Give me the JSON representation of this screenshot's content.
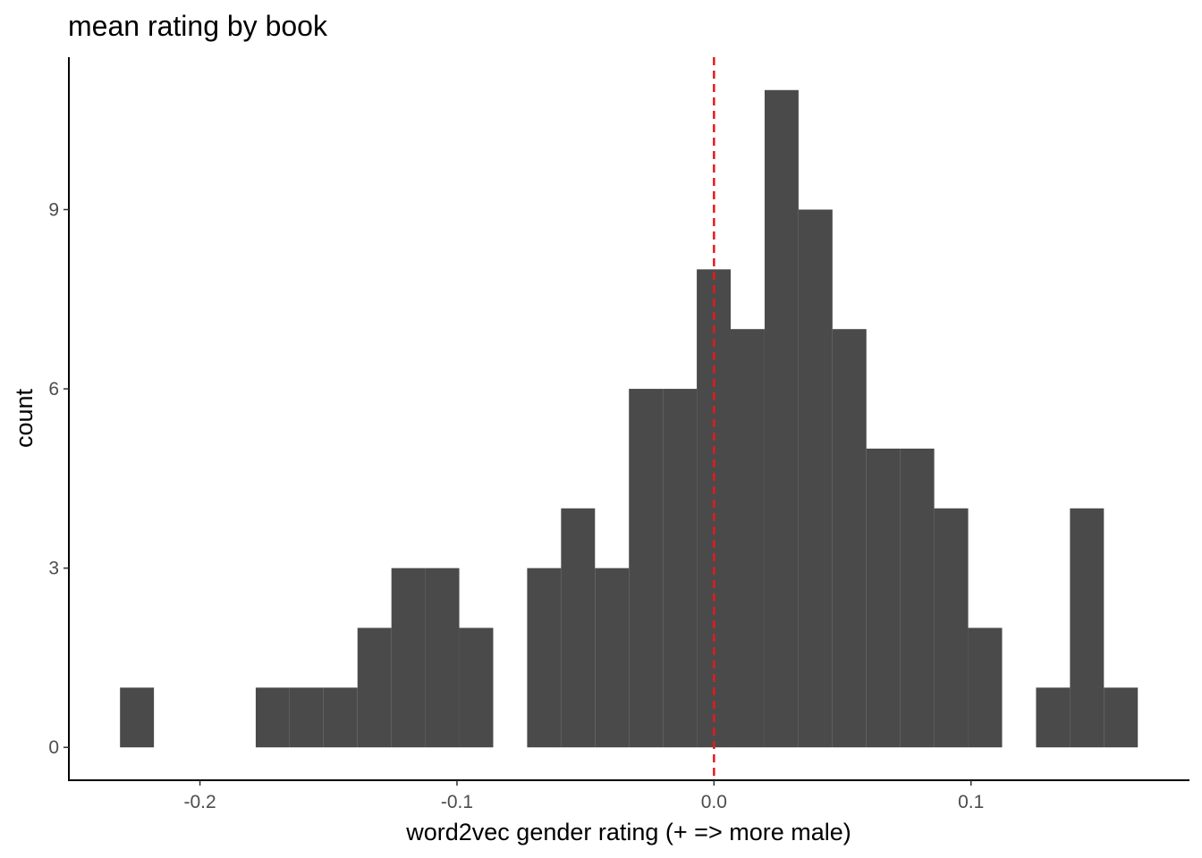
{
  "chart_data": {
    "type": "histogram",
    "title": "mean rating by book",
    "xlabel": "word2vec gender rating (+ => more male)",
    "ylabel": "count",
    "xlim": [
      -0.251,
      0.185
    ],
    "ylim": [
      -0.55,
      11.55
    ],
    "x_ticks": [
      -0.2,
      -0.1,
      0.0,
      0.1
    ],
    "x_tick_labels": [
      "-0.2",
      "-0.1",
      "0.0",
      "0.1"
    ],
    "y_ticks": [
      0,
      3,
      6,
      9
    ],
    "y_tick_labels": [
      "0",
      "3",
      "6",
      "9"
    ],
    "bin_width": 0.0132,
    "bars": [
      {
        "x0": -0.2311,
        "x1": -0.2179,
        "count": 1
      },
      {
        "x0": -0.2179,
        "x1": -0.2047,
        "count": 0
      },
      {
        "x0": -0.2047,
        "x1": -0.1915,
        "count": 0
      },
      {
        "x0": -0.1915,
        "x1": -0.1783,
        "count": 0
      },
      {
        "x0": -0.1783,
        "x1": -0.1651,
        "count": 1
      },
      {
        "x0": -0.1651,
        "x1": -0.1519,
        "count": 1
      },
      {
        "x0": -0.1519,
        "x1": -0.1387,
        "count": 1
      },
      {
        "x0": -0.1387,
        "x1": -0.1255,
        "count": 2
      },
      {
        "x0": -0.1255,
        "x1": -0.1123,
        "count": 3
      },
      {
        "x0": -0.1123,
        "x1": -0.0991,
        "count": 3
      },
      {
        "x0": -0.0991,
        "x1": -0.0859,
        "count": 2
      },
      {
        "x0": -0.0859,
        "x1": -0.0727,
        "count": 0
      },
      {
        "x0": -0.0727,
        "x1": -0.0595,
        "count": 3
      },
      {
        "x0": -0.0595,
        "x1": -0.0463,
        "count": 4
      },
      {
        "x0": -0.0463,
        "x1": -0.0331,
        "count": 3
      },
      {
        "x0": -0.0331,
        "x1": -0.0199,
        "count": 6
      },
      {
        "x0": -0.0199,
        "x1": -0.0067,
        "count": 6
      },
      {
        "x0": -0.0067,
        "x1": 0.0065,
        "count": 8
      },
      {
        "x0": 0.0065,
        "x1": 0.0197,
        "count": 7
      },
      {
        "x0": 0.0197,
        "x1": 0.0329,
        "count": 11
      },
      {
        "x0": 0.0329,
        "x1": 0.0461,
        "count": 9
      },
      {
        "x0": 0.0461,
        "x1": 0.0593,
        "count": 7
      },
      {
        "x0": 0.0593,
        "x1": 0.0725,
        "count": 5
      },
      {
        "x0": 0.0725,
        "x1": 0.0857,
        "count": 5
      },
      {
        "x0": 0.0857,
        "x1": 0.0989,
        "count": 4
      },
      {
        "x0": 0.0989,
        "x1": 0.1121,
        "count": 2
      },
      {
        "x0": 0.1121,
        "x1": 0.1253,
        "count": 0
      },
      {
        "x0": 0.1253,
        "x1": 0.1385,
        "count": 1
      },
      {
        "x0": 0.1385,
        "x1": 0.1517,
        "count": 4
      },
      {
        "x0": 0.1517,
        "x1": 0.1649,
        "count": 1
      }
    ],
    "reference_line": {
      "x": 0.0,
      "color": "#e41a1c",
      "style": "dashed"
    },
    "bar_color": "#4a4a4a",
    "grid": false
  }
}
